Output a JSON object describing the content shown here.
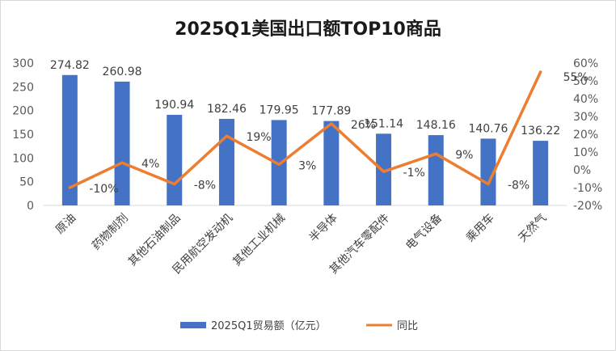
{
  "chart_data": {
    "type": "bar",
    "title": "2025Q1美国出口额TOP10商品",
    "categories": [
      "原油",
      "药物制剂",
      "其他石油制品",
      "民用航空发动机",
      "其他工业机械",
      "半导体",
      "其他汽车零配件",
      "电气设备",
      "乘用车",
      "天然气"
    ],
    "series": [
      {
        "name": "2025Q1贸易额（亿元）",
        "type": "bar",
        "axis": "left",
        "color": "#4472c4",
        "values": [
          274.82,
          260.98,
          190.94,
          182.46,
          179.95,
          177.89,
          151.14,
          148.16,
          140.76,
          136.22
        ],
        "labels": [
          "274.82",
          "260.98",
          "190.94",
          "182.46",
          "179.95",
          "177.89",
          "151.14",
          "148.16",
          "140.76",
          "136.22"
        ]
      },
      {
        "name": "同比",
        "type": "line",
        "axis": "right",
        "color": "#ed7d31",
        "values": [
          -10,
          4,
          -8,
          19,
          3,
          26,
          -1,
          9,
          -8,
          55
        ],
        "labels": [
          "-10%",
          "4%",
          "-8%",
          "19%",
          "3%",
          "26%",
          "-1%",
          "9%",
          "-8%",
          "55%"
        ]
      }
    ],
    "left_axis": {
      "min": 0,
      "max": 300,
      "step": 50,
      "ticks": [
        "0",
        "50",
        "100",
        "150",
        "200",
        "250",
        "300"
      ]
    },
    "right_axis": {
      "min": -20,
      "max": 60,
      "step": 10,
      "ticks": [
        "-20%",
        "-10%",
        "0%",
        "10%",
        "20%",
        "30%",
        "40%",
        "50%",
        "60%"
      ]
    },
    "grid": false,
    "legend_position": "bottom"
  }
}
